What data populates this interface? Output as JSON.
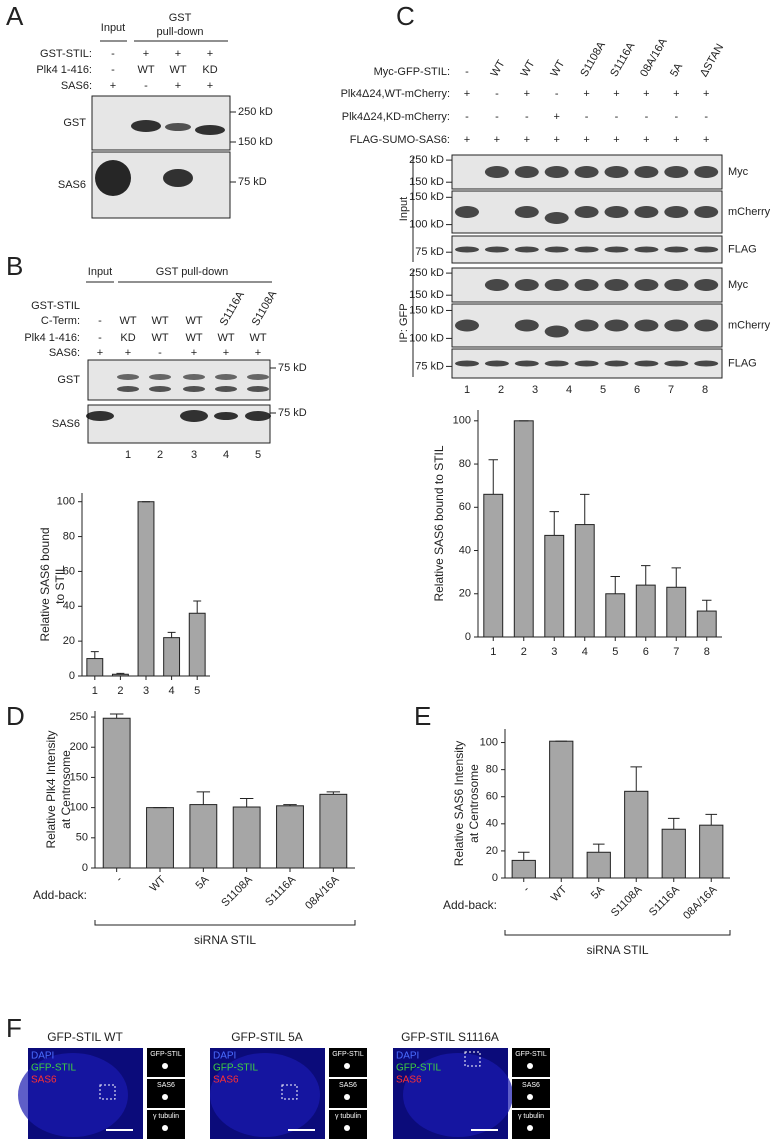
{
  "panel_labels": [
    "A",
    "B",
    "C",
    "D",
    "E",
    "F"
  ],
  "panel_a": {
    "input": "Input",
    "pulldown": [
      "GST",
      "pull-down"
    ],
    "rows": [
      {
        "label": "GST-STIL:",
        "lanes": [
          "-",
          "+",
          "+",
          "+"
        ]
      },
      {
        "label": "Plk4 1-416:",
        "lanes": [
          "-",
          "WT",
          "WT",
          "KD"
        ]
      },
      {
        "label": "SAS6:",
        "lanes": [
          "+",
          "-",
          "+",
          "+"
        ]
      }
    ],
    "blots": [
      {
        "label": "GST",
        "markers": [
          "250 kD",
          "150 kD"
        ]
      },
      {
        "label": "SAS6",
        "markers": [
          "75 kD"
        ]
      }
    ]
  },
  "panel_b": {
    "input": "Input",
    "pulldown": "GST pull-down",
    "rows": [
      {
        "label": [
          "GST-STIL",
          "C-Term:"
        ],
        "lanes": [
          "-",
          "WT",
          "WT",
          "WT",
          "S1116A",
          "S1108A"
        ]
      },
      {
        "label": [
          "Plk4 1-416:"
        ],
        "lanes": [
          "-",
          "KD",
          "WT",
          "WT",
          "WT",
          "WT"
        ]
      },
      {
        "label": [
          "SAS6:"
        ],
        "lanes": [
          "+",
          "+",
          "-",
          "+",
          "+",
          "+"
        ]
      }
    ],
    "blots": [
      {
        "label": "GST",
        "markers": [
          "75 kD"
        ]
      },
      {
        "label": "SAS6",
        "markers": [
          "75 kD"
        ]
      }
    ],
    "lane_numbers": [
      "1",
      "2",
      "3",
      "4",
      "5"
    ]
  },
  "panel_c": {
    "rows": [
      {
        "label": "Myc-GFP-STIL:",
        "lanes": [
          "-",
          "WT",
          "WT",
          "WT",
          "S1108A",
          "S1116A",
          "08A/16A",
          "5A",
          "ΔSTAN"
        ]
      },
      {
        "label": "Plk4Δ24,WT-mCherry:",
        "lanes": [
          "+",
          "-",
          "+",
          "-",
          "+",
          "+",
          "+",
          "+",
          "+"
        ]
      },
      {
        "label": "Plk4Δ24,KD-mCherry:",
        "lanes": [
          "-",
          "-",
          "-",
          "+",
          "-",
          "-",
          "-",
          "-",
          "-"
        ]
      },
      {
        "label": "FLAG-SUMO-SAS6:",
        "lanes": [
          "+",
          "+",
          "+",
          "+",
          "+",
          "+",
          "+",
          "+",
          "+"
        ]
      }
    ],
    "side_labels": [
      "Input",
      "IP: GFP"
    ],
    "blots": [
      {
        "label": "Myc",
        "markers": [
          "250 kD",
          "150 kD"
        ]
      },
      {
        "label": "mCherry",
        "markers": [
          "150 kD",
          "100 kD"
        ]
      },
      {
        "label": "FLAG",
        "markers": [
          "75 kD"
        ]
      },
      {
        "label": "Myc",
        "markers": [
          "250 kD",
          "150 kD"
        ]
      },
      {
        "label": "mCherry",
        "markers": [
          "150 kD",
          "100 kD"
        ]
      },
      {
        "label": "FLAG",
        "markers": [
          "75 kD"
        ]
      }
    ],
    "lane_numbers": [
      "1",
      "2",
      "3",
      "4",
      "5",
      "6",
      "7",
      "8"
    ]
  },
  "chart_data": [
    {
      "type": "bar",
      "ylabel": [
        "Relative SAS6 bound",
        "to STIL"
      ],
      "categories": [
        "1",
        "2",
        "3",
        "4",
        "5"
      ],
      "values": [
        10,
        1,
        100,
        22,
        36
      ],
      "errors": [
        4,
        0.5,
        0,
        3,
        7
      ],
      "color": "#a6a6a6",
      "ylim": [
        0,
        105
      ],
      "yticks": [
        0,
        20,
        40,
        60,
        80,
        100
      ]
    },
    {
      "type": "bar",
      "ylabel": [
        "Relative SAS6 bound to STIL"
      ],
      "categories": [
        "1",
        "2",
        "3",
        "4",
        "5",
        "6",
        "7",
        "8"
      ],
      "values": [
        66,
        100,
        47,
        52,
        20,
        24,
        23,
        12
      ],
      "errors": [
        16,
        0,
        11,
        14,
        8,
        9,
        9,
        5
      ],
      "color": "#a6a6a6",
      "ylim": [
        0,
        105
      ],
      "yticks": [
        0,
        20,
        40,
        60,
        80,
        100
      ]
    },
    {
      "type": "bar",
      "ylabel": [
        "Relative Plk4 Intensity",
        "at Centrosome"
      ],
      "row_label": "Add-back:",
      "group_label": "siRNA STIL",
      "categories": [
        "-",
        "WT",
        "5A",
        "S1108A",
        "S1116A",
        "08A/16A"
      ],
      "values": [
        248,
        100,
        105,
        101,
        103,
        122
      ],
      "errors": [
        7,
        0,
        21,
        14,
        2,
        4
      ],
      "color": "#a6a6a6",
      "ylim": [
        0,
        260
      ],
      "yticks": [
        0,
        50,
        100,
        150,
        200,
        250
      ]
    },
    {
      "type": "bar",
      "ylabel": [
        "Relative SAS6 Intensity",
        "at Centrosome"
      ],
      "row_label": "Add-back:",
      "group_label": "siRNA STIL",
      "categories": [
        "-",
        "WT",
        "5A",
        "S1108A",
        "S1116A",
        "08A/16A"
      ],
      "values": [
        13,
        101,
        19,
        64,
        36,
        39
      ],
      "errors": [
        6,
        0,
        6,
        18,
        8,
        8
      ],
      "color": "#a6a6a6",
      "ylim": [
        0,
        110
      ],
      "yticks": [
        0,
        20,
        40,
        60,
        80,
        100
      ]
    }
  ],
  "panel_f": {
    "images": [
      {
        "title": "GFP-STIL WT",
        "channels": [
          "DAPI",
          "GFP-STIL",
          "SAS6"
        ],
        "insets": [
          "GFP-STIL",
          "SAS6",
          "γ tubulin"
        ]
      },
      {
        "title": "GFP-STIL 5A",
        "channels": [
          "DAPI",
          "GFP-STIL",
          "SAS6"
        ],
        "insets": [
          "GFP-STIL",
          "SAS6",
          "γ tubulin"
        ]
      },
      {
        "title": "GFP-STIL S1116A",
        "channels": [
          "DAPI",
          "GFP-STIL",
          "SAS6"
        ],
        "insets": [
          "GFP-STIL",
          "SAS6",
          "γ tubulin"
        ]
      }
    ]
  }
}
